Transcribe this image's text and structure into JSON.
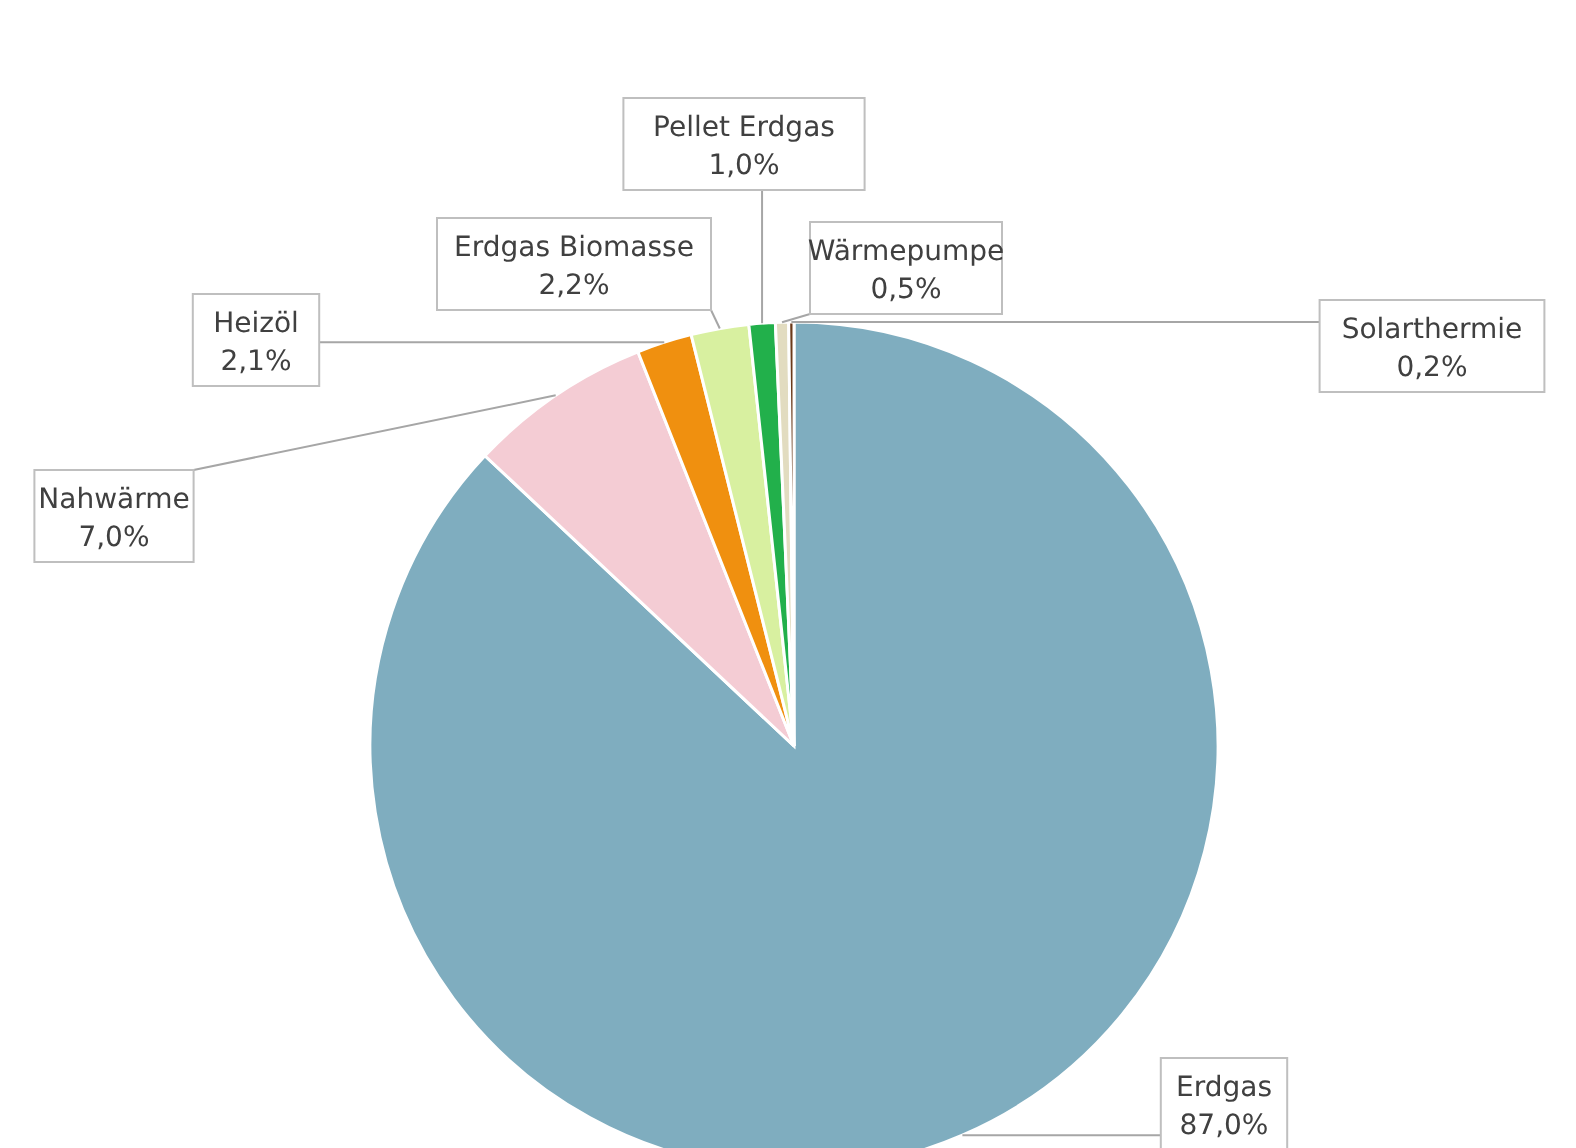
{
  "chart_data": {
    "type": "pie",
    "categories": [
      "Erdgas",
      "Nahwärme",
      "Heizöl",
      "Erdgas Biomasse",
      "Pellet Erdgas",
      "Wärmepumpe",
      "Solarthermie"
    ],
    "values": [
      87.0,
      7.0,
      2.1,
      2.2,
      1.0,
      0.5,
      0.2
    ],
    "value_labels": [
      "87,0%",
      "7,0%",
      "2,1%",
      "2,2%",
      "1,0%",
      "0,5%",
      "0,2%"
    ],
    "colors": [
      "#7fadbf",
      "#f4ccd4",
      "#f0900f",
      "#d8f0a0",
      "#22b04b",
      "#e2dcc0",
      "#6b3a1a"
    ],
    "legend": false
  }
}
